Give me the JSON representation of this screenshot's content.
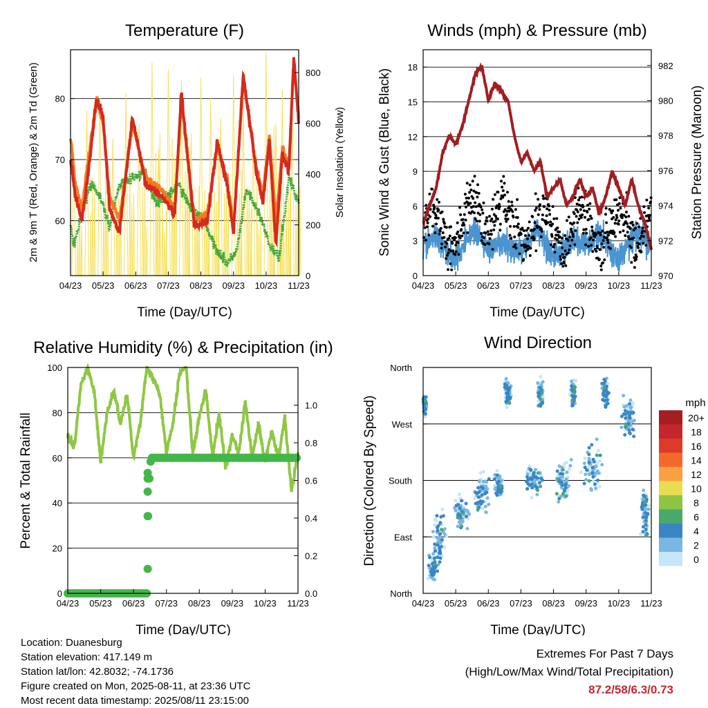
{
  "colors": {
    "temp2m": "#d42a1e",
    "temp9m": "#f47a22",
    "dewpoint": "#43a838",
    "solar": "#f6e05a",
    "wind": "#4a94d0",
    "gust": "#000000",
    "pressure": "#a01e22",
    "rh": "#8ec843",
    "precip": "#43b64a",
    "extremes": "#c4262e"
  },
  "chart_data": [
    {
      "id": "temperature",
      "type": "line",
      "title": "Temperature (F)",
      "xlabel": "Time (Day/UTC)",
      "ylabel": "2m & 9m T (Red, Orange) & 2m Td (Green)",
      "y2label": "Solar Insolation (Yellow)",
      "xticks": [
        "04/23",
        "05/23",
        "06/23",
        "07/23",
        "08/23",
        "09/23",
        "10/23",
        "11/23"
      ],
      "xlim": [
        0,
        7
      ],
      "ylim": [
        51,
        88
      ],
      "yticks": [
        60,
        70,
        80
      ],
      "y2lim": [
        0,
        890
      ],
      "y2ticks": [
        0,
        200,
        400,
        600,
        800
      ],
      "grid": true,
      "series": [
        {
          "key": "t2m",
          "x": [
            0,
            0.15,
            0.35,
            0.55,
            0.8,
            1.0,
            1.2,
            1.5,
            1.9,
            2.3,
            2.8,
            3.2,
            3.4,
            3.8,
            4.2,
            4.5,
            4.8,
            5.0,
            5.3,
            5.7,
            5.9,
            6.1,
            6.3,
            6.5,
            6.7,
            6.85,
            7.0
          ],
          "y": [
            70,
            64,
            60,
            68,
            80,
            77,
            62,
            58,
            77,
            66,
            64,
            61,
            81,
            59,
            60,
            73,
            66,
            58,
            84,
            68,
            63,
            73,
            56,
            71,
            68,
            87,
            76
          ]
        },
        {
          "key": "t9m",
          "x": [
            0,
            0.15,
            0.35,
            0.55,
            0.8,
            1.0,
            1.2,
            1.5,
            1.9,
            2.3,
            2.8,
            3.2,
            3.4,
            3.8,
            4.2,
            4.5,
            4.8,
            5.0,
            5.3,
            5.7,
            5.9,
            6.1,
            6.3,
            6.5,
            6.7,
            6.85,
            7.0
          ],
          "y": [
            74,
            66,
            62,
            70,
            80,
            76,
            64,
            60,
            76,
            67,
            65,
            62,
            80,
            60,
            61,
            72,
            67,
            59,
            83,
            69,
            64,
            74,
            60,
            72,
            69,
            86,
            77
          ]
        },
        {
          "key": "td",
          "x": [
            0,
            0.1,
            0.3,
            0.6,
            0.9,
            1.2,
            1.5,
            1.9,
            2.3,
            2.6,
            3.0,
            3.3,
            3.7,
            4.1,
            4.4,
            4.8,
            5.1,
            5.4,
            5.8,
            6.1,
            6.4,
            6.7,
            7.0
          ],
          "y": [
            59,
            56,
            60,
            66,
            64,
            59,
            66,
            67,
            68,
            63,
            64,
            66,
            62,
            60,
            56,
            53,
            55,
            65,
            61,
            56,
            54,
            67,
            63
          ]
        },
        {
          "key": "solar",
          "x": [
            0.1,
            0.5,
            0.9,
            1.3,
            1.7,
            2.1,
            2.5,
            2.7,
            3.0,
            3.4,
            3.7,
            4.0,
            4.3,
            4.6,
            5.0,
            5.3,
            5.6,
            6.0,
            6.3,
            6.5,
            6.8
          ],
          "y": [
            480,
            650,
            700,
            540,
            720,
            600,
            840,
            500,
            810,
            770,
            560,
            780,
            700,
            620,
            790,
            690,
            560,
            880,
            600,
            730,
            650
          ]
        }
      ]
    },
    {
      "id": "winds",
      "type": "scatter",
      "title": "Winds (mph) & Pressure (mb)",
      "xlabel": "Time (Day/UTC)",
      "ylabel": "Sonic Wind & Gust (Blue, Black)",
      "y2label": "Station Pressure (Maroon)",
      "xticks": [
        "04/23",
        "05/23",
        "06/23",
        "07/23",
        "08/23",
        "09/23",
        "10/23",
        "11/23"
      ],
      "xlim": [
        0,
        7
      ],
      "ylim": [
        0,
        19.5
      ],
      "yticks": [
        0,
        3,
        6,
        9,
        12,
        15,
        18
      ],
      "y2lim": [
        970,
        982.9
      ],
      "y2ticks": [
        970,
        972,
        974,
        976,
        978,
        980,
        982
      ],
      "grid": true,
      "pressure": {
        "x": [
          0,
          0.2,
          0.4,
          0.6,
          0.8,
          1.0,
          1.2,
          1.4,
          1.6,
          1.8,
          2.0,
          2.2,
          2.4,
          2.6,
          2.8,
          3.0,
          3.2,
          3.4,
          3.6,
          3.8,
          4.0,
          4.2,
          4.4,
          4.6,
          4.8,
          5.0,
          5.2,
          5.4,
          5.6,
          5.8,
          6.0,
          6.2,
          6.4,
          6.6,
          6.8,
          7.0
        ],
        "y": [
          973,
          974,
          975,
          977,
          978,
          977.5,
          978.5,
          980,
          981.5,
          982,
          980,
          981,
          980.5,
          980,
          978,
          976.5,
          977,
          976,
          976.5,
          974.5,
          975,
          975.5,
          974,
          974.5,
          975.5,
          974.5,
          975,
          973.5,
          974.5,
          976,
          975,
          974,
          975.5,
          974,
          973,
          971.5
        ]
      }
    },
    {
      "id": "humidity",
      "type": "line",
      "title": "Relative Humidity (%) & Precipitation (in)",
      "xlabel": "Time (Day/UTC)",
      "ylabel": "Percent & Total Rainfall",
      "xticks": [
        "04/23",
        "05/23",
        "06/23",
        "07/23",
        "08/23",
        "09/23",
        "10/23",
        "11/23"
      ],
      "xlim": [
        0,
        7
      ],
      "ylim": [
        0,
        100
      ],
      "yticks": [
        0,
        20,
        40,
        60,
        80,
        100
      ],
      "y2lim": [
        0,
        1.2
      ],
      "y2ticks": [
        "0.0",
        "0.2",
        "0.4",
        "0.6",
        "0.8",
        "1.0"
      ],
      "grid": true,
      "rh": {
        "x": [
          0,
          0.2,
          0.4,
          0.6,
          0.8,
          1.0,
          1.2,
          1.4,
          1.6,
          1.8,
          2.0,
          2.2,
          2.4,
          2.6,
          2.8,
          3.0,
          3.2,
          3.4,
          3.6,
          3.8,
          4.0,
          4.2,
          4.4,
          4.6,
          4.8,
          5.0,
          5.2,
          5.4,
          5.6,
          5.8,
          6.0,
          6.2,
          6.4,
          6.6,
          6.8,
          7.0
        ],
        "y": [
          70,
          65,
          92,
          100,
          90,
          58,
          80,
          90,
          75,
          88,
          60,
          75,
          100,
          95,
          88,
          62,
          75,
          98,
          100,
          62,
          78,
          90,
          60,
          80,
          55,
          70,
          62,
          85,
          60,
          75,
          58,
          72,
          60,
          78,
          45,
          62
        ]
      },
      "precip": {
        "x": [
          0,
          0.5,
          1.0,
          1.5,
          2.0,
          2.4,
          2.42,
          2.44,
          2.46,
          2.48,
          2.5,
          2.52,
          2.55,
          3.0,
          3.5,
          4.0,
          4.5,
          5.0,
          5.5,
          6.0,
          6.5,
          7.0
        ],
        "y": [
          0,
          0,
          0,
          0,
          0,
          0,
          0.13,
          0.41,
          0.54,
          0.61,
          0.64,
          0.7,
          0.72,
          0.72,
          0.72,
          0.72,
          0.72,
          0.72,
          0.72,
          0.72,
          0.72,
          0.72
        ]
      }
    },
    {
      "id": "direction",
      "type": "scatter",
      "title": "Wind Direction",
      "xlabel": "Time (Day/UTC)",
      "ylabel": "Direction (Colored By Speed)",
      "xticks": [
        "04/23",
        "05/23",
        "06/23",
        "07/23",
        "08/23",
        "09/23",
        "10/23",
        "11/23"
      ],
      "xlim": [
        0,
        7
      ],
      "yticks": [
        "North",
        "East",
        "South",
        "West",
        "North"
      ],
      "ylim": [
        0,
        360
      ],
      "grid": true,
      "legend": {
        "title": "mph",
        "placement": "right",
        "labels": [
          "20+",
          "18",
          "16",
          "14",
          "12",
          "10",
          "8",
          "6",
          "4",
          "2",
          "0"
        ],
        "colors": [
          "#a51e22",
          "#c4262e",
          "#de3a28",
          "#f26a2a",
          "#f9a040",
          "#e8dc50",
          "#8ec443",
          "#4aa86a",
          "#3a86c4",
          "#7ab6e2",
          "#c4e6f8"
        ]
      },
      "clusters": [
        {
          "x": 0.05,
          "y": 300,
          "sx": 0.08,
          "sy": 25
        },
        {
          "x": 0.5,
          "y": 90,
          "sx": 0.25,
          "sy": 60
        },
        {
          "x": 0.3,
          "y": 40,
          "sx": 0.2,
          "sy": 30
        },
        {
          "x": 1.2,
          "y": 130,
          "sx": 0.3,
          "sy": 40
        },
        {
          "x": 1.8,
          "y": 160,
          "sx": 0.3,
          "sy": 40
        },
        {
          "x": 2.3,
          "y": 170,
          "sx": 0.2,
          "sy": 30
        },
        {
          "x": 2.6,
          "y": 320,
          "sx": 0.15,
          "sy": 30
        },
        {
          "x": 3.4,
          "y": 180,
          "sx": 0.4,
          "sy": 30
        },
        {
          "x": 3.6,
          "y": 320,
          "sx": 0.12,
          "sy": 30
        },
        {
          "x": 4.3,
          "y": 180,
          "sx": 0.3,
          "sy": 40
        },
        {
          "x": 4.6,
          "y": 320,
          "sx": 0.12,
          "sy": 30
        },
        {
          "x": 5.2,
          "y": 200,
          "sx": 0.4,
          "sy": 50
        },
        {
          "x": 5.6,
          "y": 320,
          "sx": 0.15,
          "sy": 30
        },
        {
          "x": 6.3,
          "y": 280,
          "sx": 0.3,
          "sy": 40
        },
        {
          "x": 6.8,
          "y": 130,
          "sx": 0.2,
          "sy": 50
        }
      ]
    }
  ],
  "footer": {
    "location": "Location: Duanesburg",
    "elevation": "Station elevation: 417.149 m",
    "latlon": "Station lat/lon: 42.8032; -74.1736",
    "created": "Figure created on Mon, 2025-08-11, at 23:36 UTC",
    "recent": "Most recent data timestamp: 2025/08/11 23:15:00"
  },
  "extremes": {
    "title": "Extremes For Past 7 Days",
    "subtitle": "(High/Low/Max Wind/Total Precipitation)",
    "values": "87.2/58/6.3/0.73"
  }
}
